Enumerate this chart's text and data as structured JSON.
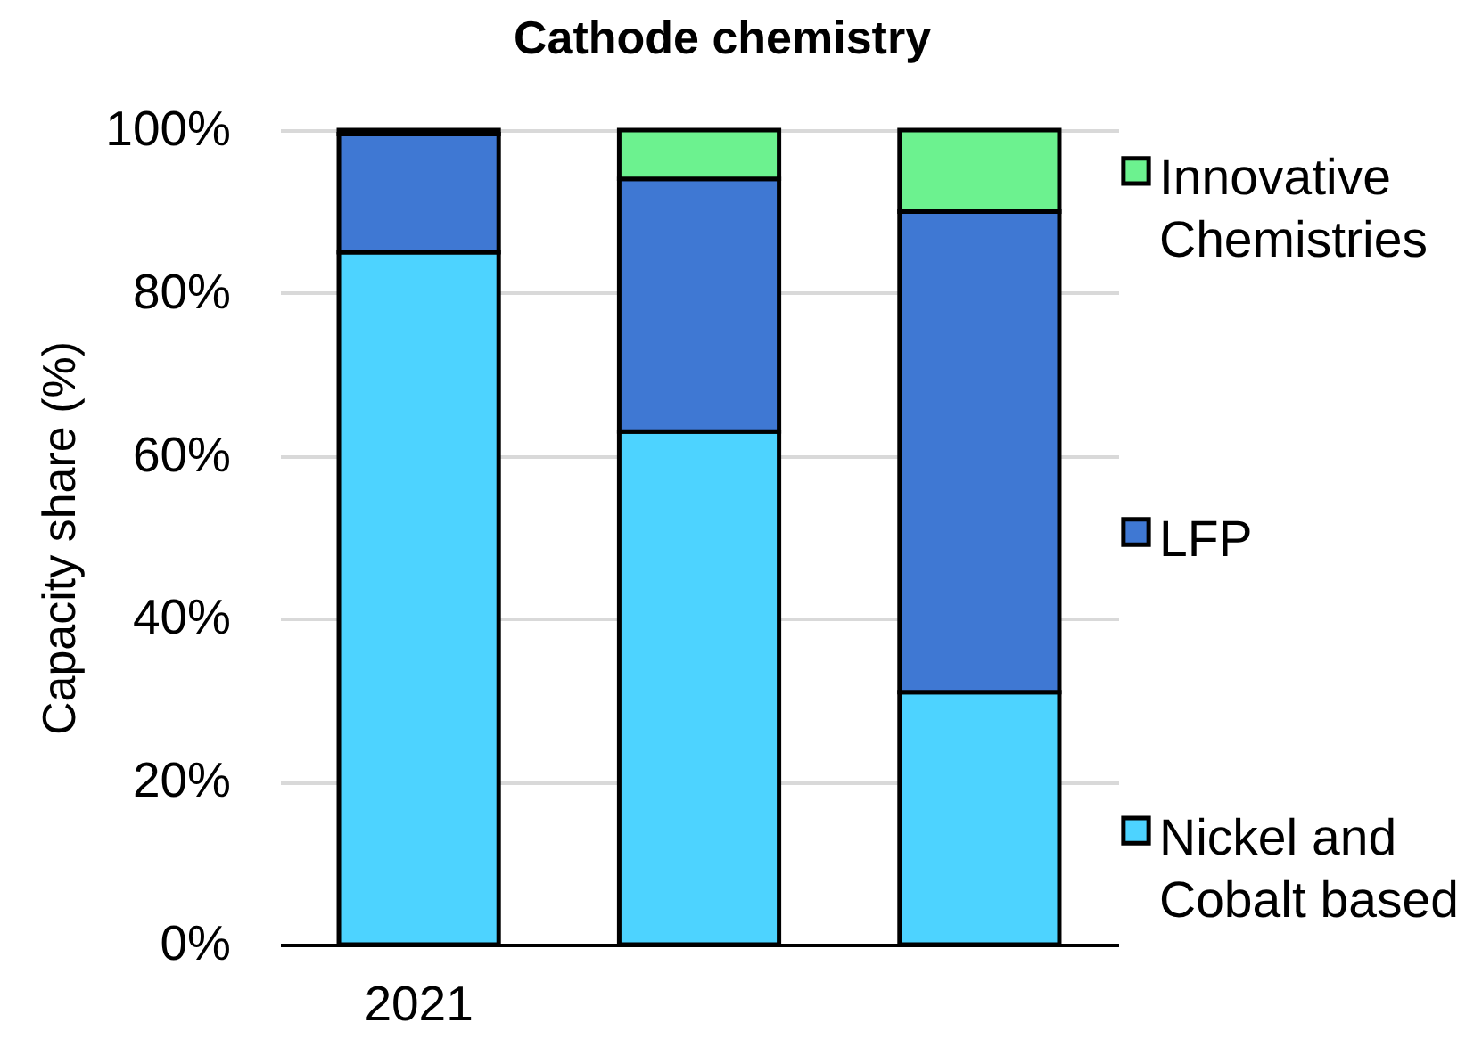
{
  "chart_data": {
    "type": "bar",
    "title": "Cathode chemistry",
    "ylabel": "Capacity share (%)",
    "categories": [
      "2021",
      null,
      null
    ],
    "series": [
      {
        "name": "Nickel and Cobalt based",
        "color": "#4dd3ff",
        "values": [
          85,
          63,
          31
        ]
      },
      {
        "name": "LFP",
        "color": "#3f78d3",
        "values": [
          14.5,
          31,
          59
        ]
      },
      {
        "name": "Innovative Chemistries",
        "color": "#6cf28f",
        "values": [
          0.5,
          6,
          10
        ]
      }
    ],
    "stacked": true,
    "ylim": [
      0,
      100
    ],
    "yticks": [
      {
        "value": 0,
        "label": "0%"
      },
      {
        "value": 20,
        "label": "20%"
      },
      {
        "value": 40,
        "label": "40%"
      },
      {
        "value": 60,
        "label": "60%"
      },
      {
        "value": 80,
        "label": "80%"
      },
      {
        "value": 100,
        "label": "100%"
      }
    ],
    "grid": "y",
    "legend": "right"
  }
}
